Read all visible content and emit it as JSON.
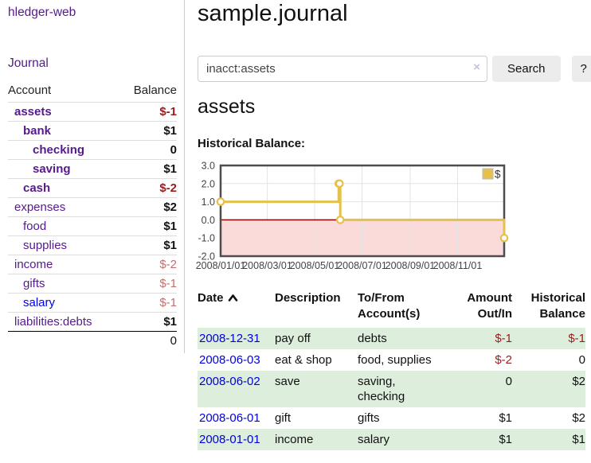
{
  "colors": {
    "link_purple": "#551a8b",
    "link_blue": "#0000e0",
    "negative_strong": "#9b1b1b",
    "negative_soft": "#c36f6f",
    "row_stripe_green": "#ddeedd",
    "chart_line_gold": "#e5c04a",
    "chart_negative_fill": "#fbdada",
    "chart_zero_line": "#990000",
    "chart_border": "#4d4d4d"
  },
  "sidebar": {
    "app_title": "hledger-web",
    "nav": {
      "journal_label": "Journal"
    },
    "accounts_table": {
      "headers": {
        "account": "Account",
        "balance": "Balance"
      },
      "rows": [
        {
          "name": "assets",
          "balance": "$-1",
          "depth": 1,
          "bold": true,
          "balance_style": "negative-strong"
        },
        {
          "name": "bank",
          "balance": "$1",
          "depth": 2,
          "bold": true,
          "balance_style": "positive"
        },
        {
          "name": "checking",
          "balance": "0",
          "depth": 3,
          "bold": true,
          "balance_style": "positive"
        },
        {
          "name": "saving",
          "balance": "$1",
          "depth": 3,
          "bold": true,
          "balance_style": "positive"
        },
        {
          "name": "cash",
          "balance": "$-2",
          "depth": 2,
          "bold": true,
          "balance_style": "negative-strong"
        },
        {
          "name": "expenses",
          "balance": "$2",
          "depth": 1,
          "bold": false,
          "balance_style": "positive"
        },
        {
          "name": "food",
          "balance": "$1",
          "depth": 2,
          "bold": false,
          "balance_style": "positive"
        },
        {
          "name": "supplies",
          "balance": "$1",
          "depth": 2,
          "bold": false,
          "balance_style": "positive"
        },
        {
          "name": "income",
          "balance": "$-2",
          "depth": 1,
          "bold": false,
          "balance_style": "negative-soft"
        },
        {
          "name": "gifts",
          "balance": "$-1",
          "depth": 2,
          "bold": false,
          "balance_style": "negative-soft"
        },
        {
          "name": "salary",
          "balance": "$-1",
          "depth": 2,
          "bold": false,
          "balance_style": "negative-soft",
          "link_color": "blue"
        },
        {
          "name": "liabilities:debts",
          "balance": "$1",
          "depth": 1,
          "bold": false,
          "balance_style": "positive"
        }
      ],
      "total": "0"
    }
  },
  "main": {
    "title": "sample.journal",
    "search": {
      "value": "inacct:assets",
      "placeholder": "",
      "clear_icon": "×",
      "button_label": "Search",
      "help_label": "?"
    },
    "account_heading": "assets",
    "chart_title": "Historical Balance:"
  },
  "chart_data": {
    "type": "line",
    "step": true,
    "title": "Historical Balance",
    "series": [
      {
        "name": "$",
        "color": "#e5c04a",
        "points": [
          [
            "2008-01-01",
            1
          ],
          [
            "2008-06-01",
            2
          ],
          [
            "2008-06-02",
            2
          ],
          [
            "2008-06-03",
            0
          ],
          [
            "2008-12-31",
            -1
          ]
        ]
      }
    ],
    "x_range": [
      "2008-01-01",
      "2008-12-31"
    ],
    "x_ticks": [
      "2008/01/01",
      "2008/03/01",
      "2008/05/01",
      "2008/07/01",
      "2008/09/01",
      "2008/11/01"
    ],
    "y_ticks": [
      3.0,
      2.0,
      1.0,
      0.0,
      -1.0,
      -2.0
    ],
    "ylim": [
      -2.0,
      3.0
    ],
    "grid": true,
    "legend": {
      "label": "$",
      "position": "top-right"
    },
    "negative_region_shaded": true
  },
  "register": {
    "headers": {
      "date": "Date",
      "description": "Description",
      "accounts": "To/From Account(s)",
      "amount": "Amount Out/In",
      "balance": "Historical Balance"
    },
    "rows": [
      {
        "date": "2008-12-31",
        "description": "pay off",
        "accounts": "debts",
        "amount": "$-1",
        "balance": "$-1",
        "amount_negative": true,
        "balance_negative": true,
        "shaded": true
      },
      {
        "date": "2008-06-03",
        "description": "eat & shop",
        "accounts": "food, supplies",
        "amount": "$-2",
        "balance": "0",
        "amount_negative": true,
        "balance_negative": false,
        "shaded": false
      },
      {
        "date": "2008-06-02",
        "description": "save",
        "accounts": "saving, checking",
        "amount": "0",
        "balance": "$2",
        "amount_negative": false,
        "balance_negative": false,
        "shaded": true
      },
      {
        "date": "2008-06-01",
        "description": "gift",
        "accounts": "gifts",
        "amount": "$1",
        "balance": "$2",
        "amount_negative": false,
        "balance_negative": false,
        "shaded": false
      },
      {
        "date": "2008-01-01",
        "description": "income",
        "accounts": "salary",
        "amount": "$1",
        "balance": "$1",
        "amount_negative": false,
        "balance_negative": false,
        "shaded": true
      }
    ]
  }
}
